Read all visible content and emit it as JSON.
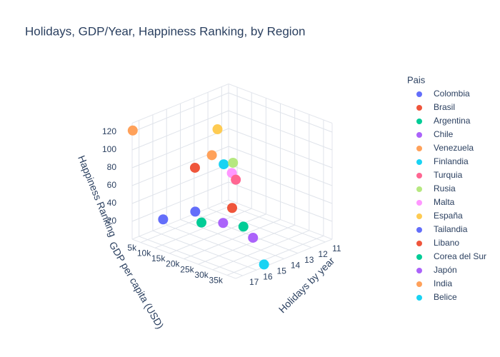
{
  "chart_data": {
    "type": "scatter3d",
    "title": "Holidays, GDP/Year, Happiness Ranking, by Region",
    "legend_title": "Pais",
    "xaxis_title": "Holidays by year",
    "yaxis_title": "GDP per capita (USD)",
    "zaxis_title": "Happiness Ranking",
    "xlim": [
      10.5,
      17.5
    ],
    "xticks": [
      11,
      12,
      13,
      14,
      15,
      16,
      17
    ],
    "ylim": [
      2000,
      38000
    ],
    "yticks": [
      {
        "value": 5000,
        "label": "5k"
      },
      {
        "value": 10000,
        "label": "10k"
      },
      {
        "value": 15000,
        "label": "15k"
      },
      {
        "value": 20000,
        "label": "20k"
      },
      {
        "value": 25000,
        "label": "25k"
      },
      {
        "value": 30000,
        "label": "30k"
      },
      {
        "value": 35000,
        "label": "35k"
      }
    ],
    "zlim": [
      0,
      130
    ],
    "zticks": [
      20,
      40,
      60,
      80,
      100,
      120
    ],
    "grid": true,
    "series": [
      {
        "name": "Colombia",
        "color": "#636efa",
        "x": [
          16.4
        ],
        "y": [
          7500
        ],
        "z": [
          22
        ]
      },
      {
        "name": "Brasil",
        "color": "#EF553B",
        "x": [
          15.3
        ],
        "y": [
          13300
        ],
        "z": [
          80
        ]
      },
      {
        "name": "Argentina",
        "color": "#00cc96",
        "x": [
          15.1
        ],
        "y": [
          14600
        ],
        "z": [
          19
        ]
      },
      {
        "name": "Chile",
        "color": "#ab63fa",
        "x": [
          14.3
        ],
        "y": [
          18300
        ],
        "z": [
          18
        ]
      },
      {
        "name": "Venezuela",
        "color": "#FFA15A",
        "x": [
          17.5
        ],
        "y": [
          2200
        ],
        "z": [
          122
        ]
      },
      {
        "name": "Finlandia",
        "color": "#19d3f3",
        "x": [
          14.3
        ],
        "y": [
          18500
        ],
        "z": [
          84
        ]
      },
      {
        "name": "Turquia",
        "color": "#FF6692",
        "x": [
          13.9
        ],
        "y": [
          20800
        ],
        "z": [
          67
        ]
      },
      {
        "name": "Rusia",
        "color": "#B6E880",
        "x": [
          14.0
        ],
        "y": [
          20300
        ],
        "z": [
          86
        ]
      },
      {
        "name": "Malta",
        "color": "#FF97FF",
        "x": [
          14.0
        ],
        "y": [
          19900
        ],
        "z": [
          74
        ]
      },
      {
        "name": "España",
        "color": "#FECB52",
        "x": [
          14.5
        ],
        "y": [
          17300
        ],
        "z": [
          123
        ]
      },
      {
        "name": "Tailandia",
        "color": "#636efa",
        "x": [
          15.3
        ],
        "y": [
          13400
        ],
        "z": [
          31
        ]
      },
      {
        "name": "Libano",
        "color": "#EF553B",
        "x": [
          14.0
        ],
        "y": [
          20000
        ],
        "z": [
          35
        ]
      },
      {
        "name": "Corea del Sur",
        "color": "#00cc96",
        "x": [
          13.6
        ],
        "y": [
          22000
        ],
        "z": [
          14
        ]
      },
      {
        "name": "Japón",
        "color": "#ab63fa",
        "x": [
          13.3
        ],
        "y": [
          23900
        ],
        "z": [
          2
        ]
      },
      {
        "name": "India",
        "color": "#FFA15A",
        "x": [
          14.7
        ],
        "y": [
          16300
        ],
        "z": [
          94
        ]
      },
      {
        "name": "Belice",
        "color": "#19d3f3",
        "x": [
          15.3
        ],
        "y": [
          37300
        ],
        "z": [
          1
        ]
      }
    ]
  }
}
